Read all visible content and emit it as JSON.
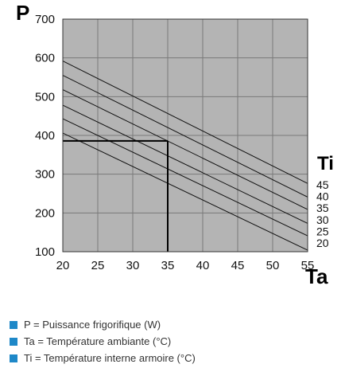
{
  "chart_data": {
    "type": "line",
    "title": "",
    "ylabel": "P",
    "xlabel": "Ta",
    "xlim": [
      20,
      55
    ],
    "ylim": [
      100,
      700
    ],
    "x_ticks": [
      20,
      25,
      30,
      35,
      40,
      45,
      50,
      55
    ],
    "y_ticks": [
      100,
      200,
      300,
      400,
      500,
      600,
      700
    ],
    "grid": true,
    "series_title": "Ti",
    "series": [
      {
        "name": "45",
        "x": [
          20,
          55
        ],
        "y": [
          592,
          276
        ]
      },
      {
        "name": "40",
        "x": [
          20,
          55
        ],
        "y": [
          555,
          241
        ]
      },
      {
        "name": "35",
        "x": [
          20,
          55
        ],
        "y": [
          518,
          209
        ]
      },
      {
        "name": "30",
        "x": [
          20,
          55
        ],
        "y": [
          478,
          173
        ]
      },
      {
        "name": "25",
        "x": [
          20,
          55
        ],
        "y": [
          443,
          141
        ]
      },
      {
        "name": "20",
        "x": [
          20,
          55
        ],
        "y": [
          406,
          104
        ]
      }
    ],
    "reference_point": {
      "x": 35,
      "y": 386
    }
  },
  "colors": {
    "plot_background": "#b4b4b4",
    "grid": "#7a7a7a",
    "series_line": "#111111",
    "reference_line": "#000000",
    "legend_marker": "#1e88c8"
  },
  "legend": {
    "items": [
      "P = Puissance frigorifique (W)",
      "Ta = Température ambiante (°C)",
      "Ti = Température interne armoire (°C)"
    ]
  }
}
